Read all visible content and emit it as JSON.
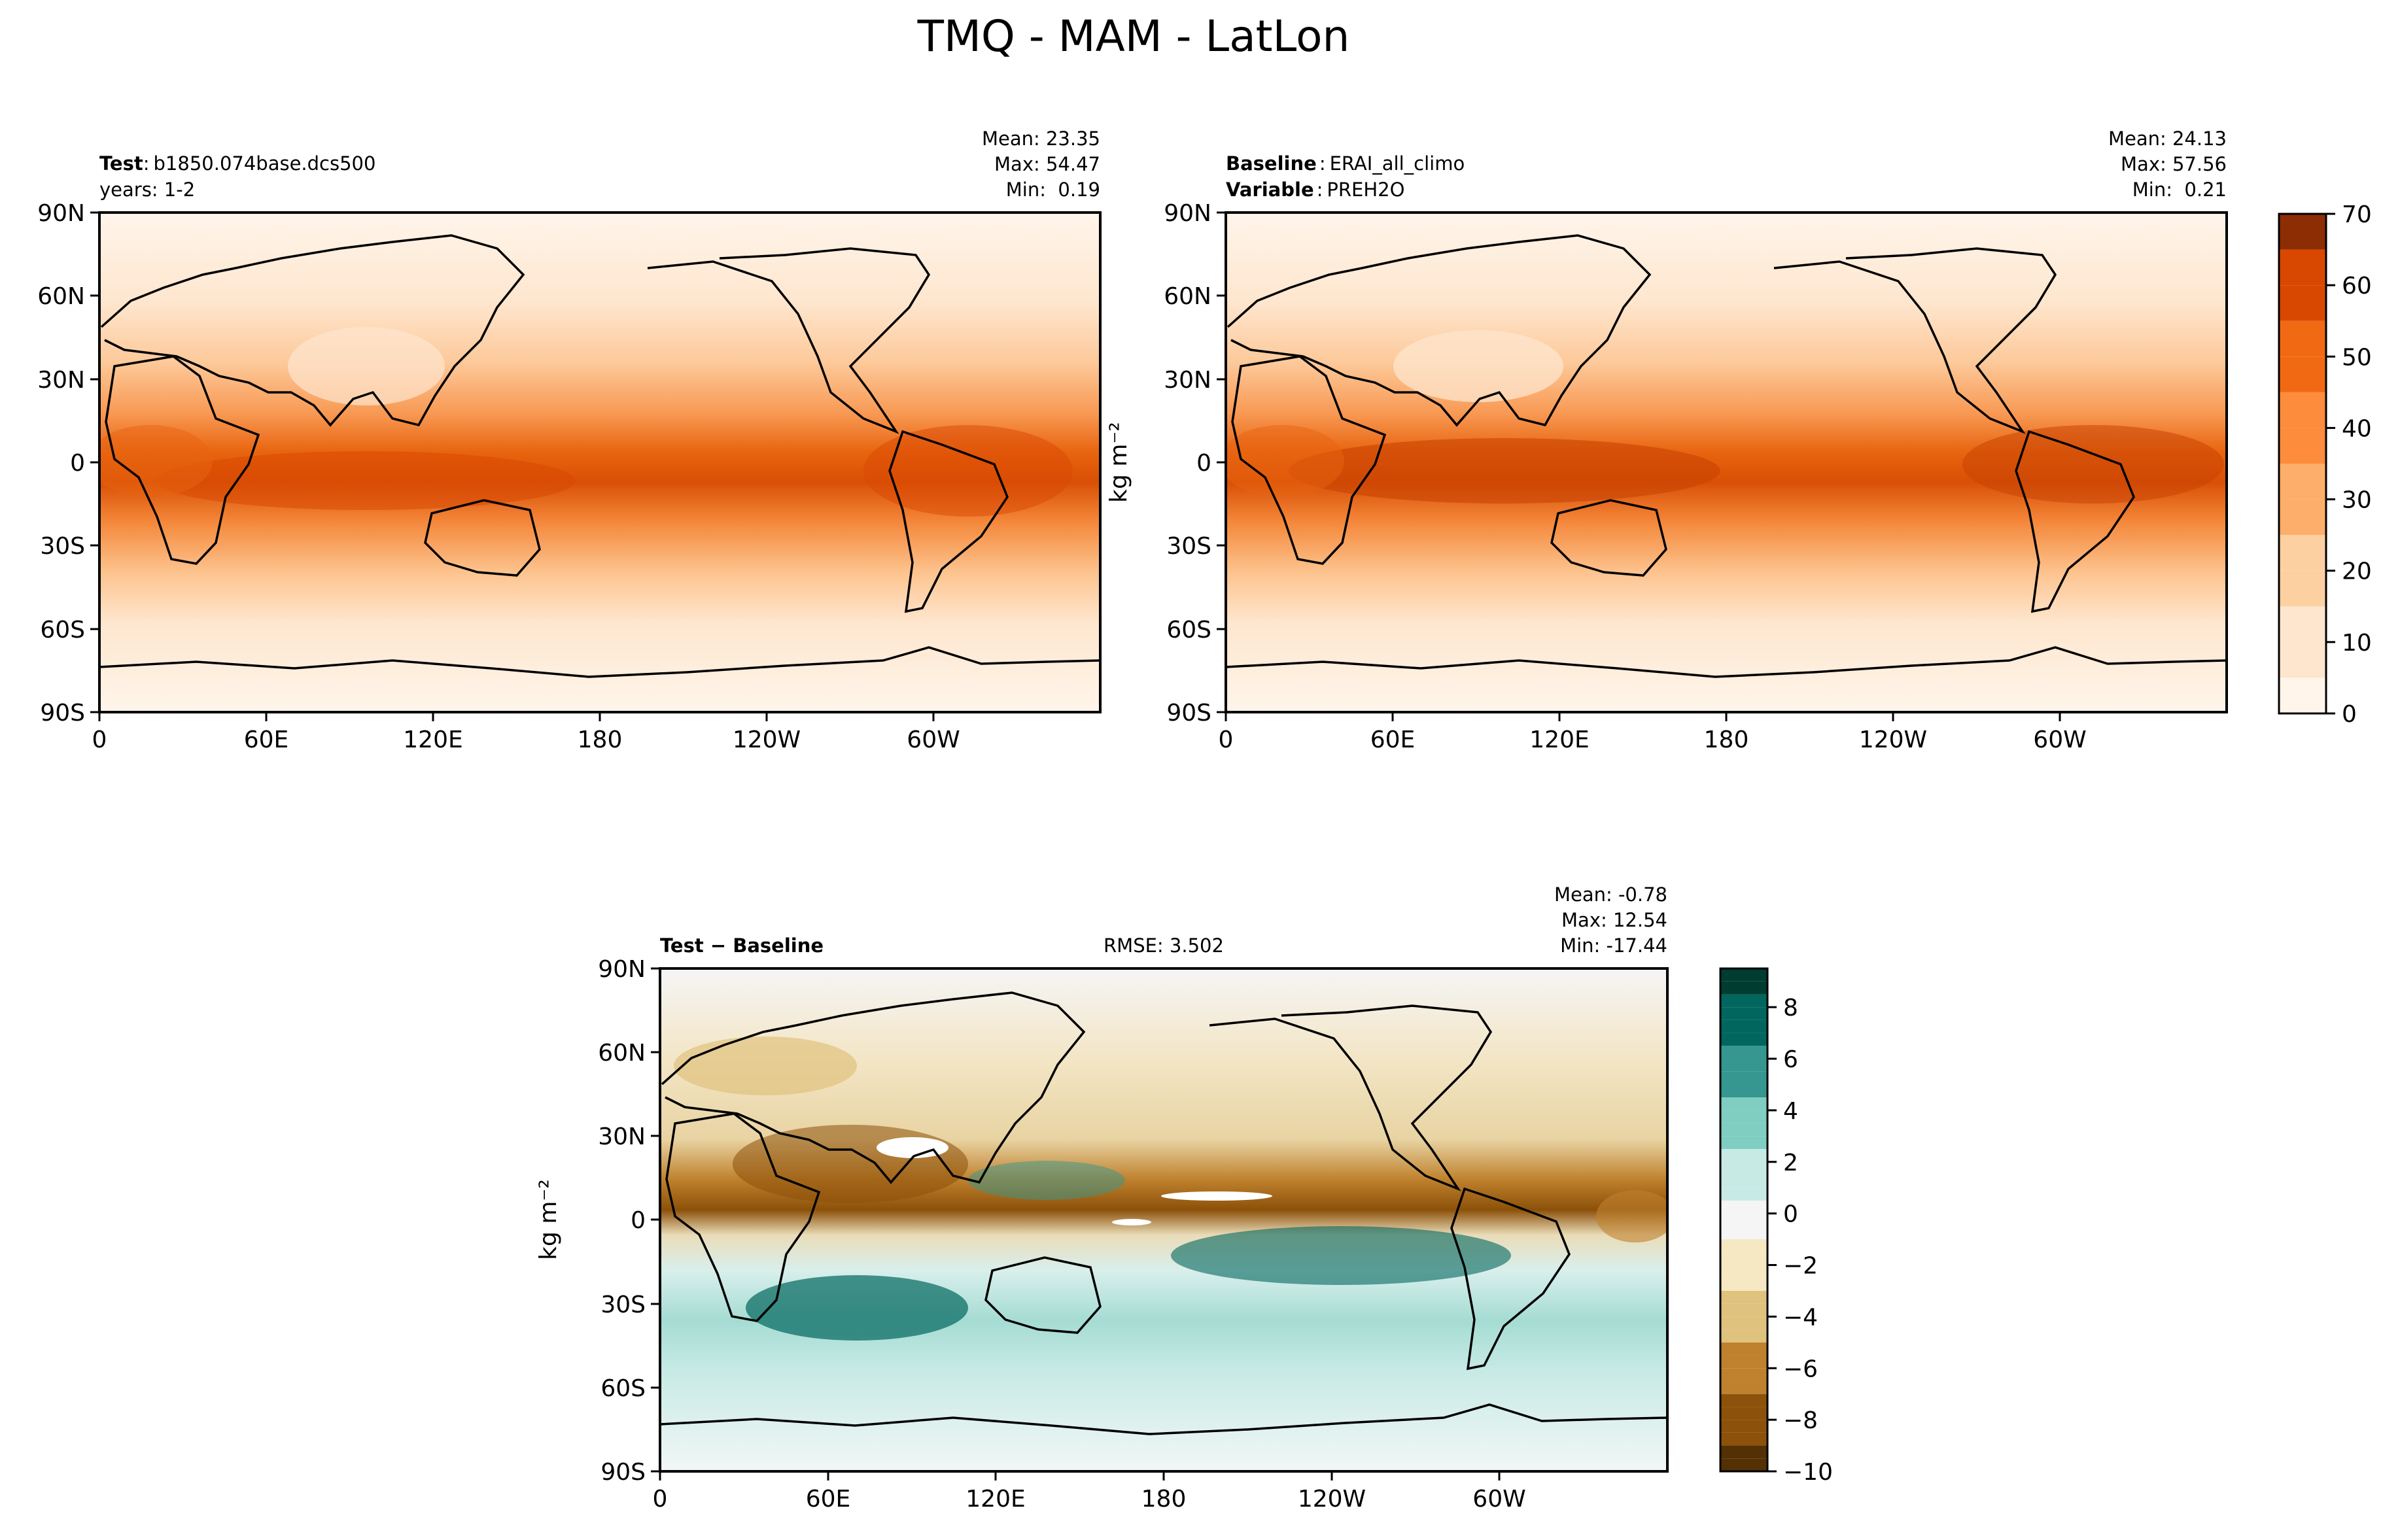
{
  "figure": {
    "title": "TMQ - MAM - LatLon"
  },
  "panels": [
    {
      "id": "test",
      "left_lines": [
        {
          "bold": "Test",
          "sep": ":",
          "text": "b1850.074base.dcs500"
        },
        {
          "bold": "",
          "sep": "",
          "text": "years: 1-2"
        }
      ],
      "center_text": "",
      "stats": [
        "Mean: 23.35",
        "Max: 54.47",
        "Min:  0.19"
      ],
      "ylabel": ""
    },
    {
      "id": "baseline",
      "left_lines": [
        {
          "bold": "Baseline",
          "sep": ":",
          "text": "ERAI_all_climo"
        },
        {
          "bold": "Variable",
          "sep": ":",
          "text": "PREH2O"
        }
      ],
      "center_text": "",
      "stats": [
        "Mean: 24.13",
        "Max: 57.56",
        "Min:  0.21"
      ],
      "ylabel": "kg m⁻²"
    },
    {
      "id": "difference",
      "left_lines": [
        {
          "bold": "Test − Baseline",
          "sep": "",
          "text": ""
        }
      ],
      "center_text": "RMSE: 3.502",
      "stats": [
        "Mean: -0.78",
        "Max: 12.54",
        "Min: -17.44"
      ],
      "ylabel": "kg m⁻²"
    }
  ],
  "axes": {
    "lon_ticks": [
      "0",
      "60E",
      "120E",
      "180",
      "120W",
      "60W"
    ],
    "lat_ticks": [
      "90N",
      "60N",
      "30N",
      "0",
      "30S",
      "60S",
      "90S"
    ]
  },
  "colorbars": {
    "main": {
      "ticks": [
        "0",
        "10",
        "20",
        "30",
        "40",
        "50",
        "60",
        "70"
      ],
      "colors": [
        "#fff5eb",
        "#fee6ce",
        "#fdd0a2",
        "#fdae6b",
        "#fd8d3c",
        "#f16913",
        "#d94801",
        "#8c2d04"
      ]
    },
    "diff": {
      "ticks": [
        "−10",
        "−8",
        "−6",
        "−4",
        "−2",
        "0",
        "2",
        "4",
        "6",
        "8"
      ],
      "colors": [
        "#543005",
        "#8c510a",
        "#bf812d",
        "#dfc27d",
        "#f6e8c3",
        "#f5f5f5",
        "#c7eae5",
        "#80cdc1",
        "#35978f",
        "#01665e",
        "#003c30"
      ]
    }
  },
  "chart_data": [
    {
      "type": "heatmap",
      "title": "",
      "xlabel": "",
      "ylabel": "",
      "xlim": [
        0,
        360
      ],
      "ylim": [
        -90,
        90
      ],
      "series": [
        {
          "name": "",
          "mean": 23.35,
          "max": 54.47,
          "min": 0.19
        }
      ]
    },
    {
      "type": "heatmap",
      "title": "",
      "xlabel": "",
      "ylabel": "kg m⁻²",
      "xlim": [
        0,
        360
      ],
      "ylim": [
        -90,
        90
      ],
      "zlim": [
        0,
        70
      ],
      "series": [
        {
          "name": "",
          "mean": 24.13,
          "max": 57.56,
          "min": 0.21
        }
      ]
    },
    {
      "type": "heatmap",
      "title": "",
      "xlabel": "",
      "ylabel": "kg m⁻²",
      "xlim": [
        0,
        360
      ],
      "ylim": [
        -90,
        90
      ],
      "zlim": [
        -10,
        9.5
      ],
      "series": [
        {
          "name": "",
          "mean": -0.78,
          "max": 12.54,
          "min": -17.44,
          "rmse": 3.502
        }
      ]
    }
  ]
}
